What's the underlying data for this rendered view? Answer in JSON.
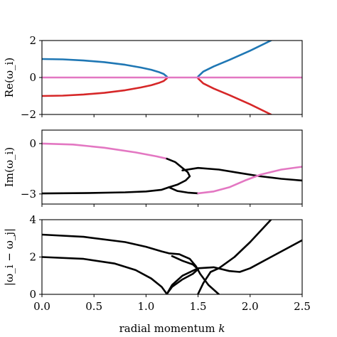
{
  "xlabel": "radial momentum k",
  "xlabel_plain": "radial momentum ",
  "xlabel_italic": "k",
  "colors": {
    "blue": "#1f77b4",
    "red": "#d62728",
    "pink": "#e377c2",
    "black": "#000000"
  },
  "chart_data": [
    {
      "type": "line",
      "ylabel": "Re(ω_i)",
      "xlim": [
        0.0,
        2.5
      ],
      "ylim": [
        -2,
        2
      ],
      "yticks": [
        "2",
        "0",
        "−2"
      ],
      "yticks_values": [
        2,
        0,
        -2
      ],
      "series": [
        {
          "color": "blue",
          "points": [
            [
              0.0,
              1.0
            ],
            [
              0.2,
              0.98
            ],
            [
              0.4,
              0.92
            ],
            [
              0.6,
              0.83
            ],
            [
              0.8,
              0.69
            ],
            [
              0.95,
              0.54
            ],
            [
              1.05,
              0.42
            ],
            [
              1.12,
              0.3
            ],
            [
              1.17,
              0.19
            ],
            [
              1.2,
              0.05
            ]
          ]
        },
        {
          "color": "blue",
          "points": [
            [
              1.5,
              0.05
            ],
            [
              1.55,
              0.32
            ],
            [
              1.65,
              0.6
            ],
            [
              1.8,
              0.95
            ],
            [
              2.0,
              1.45
            ],
            [
              2.2,
              2.0
            ]
          ]
        },
        {
          "color": "red",
          "points": [
            [
              0.0,
              -1.0
            ],
            [
              0.2,
              -0.98
            ],
            [
              0.4,
              -0.92
            ],
            [
              0.6,
              -0.83
            ],
            [
              0.8,
              -0.69
            ],
            [
              0.95,
              -0.54
            ],
            [
              1.05,
              -0.42
            ],
            [
              1.12,
              -0.3
            ],
            [
              1.17,
              -0.19
            ],
            [
              1.2,
              -0.05
            ]
          ]
        },
        {
          "color": "red",
          "points": [
            [
              1.5,
              -0.05
            ],
            [
              1.55,
              -0.32
            ],
            [
              1.65,
              -0.6
            ],
            [
              1.8,
              -0.95
            ],
            [
              2.0,
              -1.45
            ],
            [
              2.2,
              -2.0
            ]
          ]
        },
        {
          "color": "pink",
          "points": [
            [
              0.0,
              0.0
            ],
            [
              2.5,
              0.0
            ]
          ]
        }
      ]
    },
    {
      "type": "line",
      "ylabel": "Im(ω_i)",
      "xlim": [
        0.0,
        2.5
      ],
      "ylim": [
        -3.6,
        0.8
      ],
      "yticks": [
        "0",
        "−3"
      ],
      "yticks_values": [
        0,
        -3
      ],
      "series": [
        {
          "color": "pink",
          "points": [
            [
              0.0,
              0.0
            ],
            [
              0.3,
              -0.06
            ],
            [
              0.6,
              -0.25
            ],
            [
              0.9,
              -0.53
            ],
            [
              1.1,
              -0.76
            ],
            [
              1.2,
              -0.9
            ]
          ]
        },
        {
          "color": "black",
          "points": [
            [
              1.2,
              -0.9
            ],
            [
              1.28,
              -1.1
            ],
            [
              1.35,
              -1.45
            ],
            [
              1.4,
              -1.7
            ],
            [
              1.42,
              -1.95
            ],
            [
              1.38,
              -2.2
            ],
            [
              1.3,
              -2.45
            ],
            [
              1.22,
              -2.6
            ]
          ]
        },
        {
          "color": "black",
          "points": [
            [
              0.0,
              -2.97
            ],
            [
              0.4,
              -2.95
            ],
            [
              0.8,
              -2.9
            ],
            [
              1.0,
              -2.85
            ],
            [
              1.15,
              -2.75
            ],
            [
              1.22,
              -2.6
            ]
          ]
        },
        {
          "color": "black",
          "points": [
            [
              1.22,
              -2.6
            ],
            [
              1.3,
              -2.82
            ],
            [
              1.4,
              -2.92
            ],
            [
              1.5,
              -2.96
            ]
          ]
        },
        {
          "color": "black",
          "points": [
            [
              1.35,
              -1.6
            ],
            [
              1.5,
              -1.45
            ],
            [
              1.7,
              -1.55
            ],
            [
              1.9,
              -1.75
            ],
            [
              2.1,
              -1.95
            ],
            [
              2.3,
              -2.1
            ],
            [
              2.5,
              -2.2
            ]
          ]
        },
        {
          "color": "pink",
          "points": [
            [
              1.5,
              -2.96
            ],
            [
              1.65,
              -2.85
            ],
            [
              1.8,
              -2.6
            ],
            [
              1.95,
              -2.2
            ],
            [
              2.1,
              -1.85
            ],
            [
              2.3,
              -1.55
            ],
            [
              2.5,
              -1.38
            ]
          ]
        }
      ]
    },
    {
      "type": "line",
      "ylabel": "|ω_i − ω_j|",
      "xlim": [
        0.0,
        2.5
      ],
      "ylim": [
        0,
        4
      ],
      "yticks": [
        "4",
        "2",
        "0"
      ],
      "yticks_values": [
        4,
        2,
        0
      ],
      "xticks": [
        "0.0",
        "0.5",
        "1.0",
        "1.5",
        "2.0",
        "2.5"
      ],
      "xticks_values": [
        0.0,
        0.5,
        1.0,
        1.5,
        2.0,
        2.5
      ],
      "series": [
        {
          "color": "black",
          "points": [
            [
              0.0,
              3.2
            ],
            [
              0.4,
              3.08
            ],
            [
              0.8,
              2.8
            ],
            [
              1.0,
              2.55
            ],
            [
              1.15,
              2.3
            ],
            [
              1.22,
              2.2
            ],
            [
              1.32,
              2.15
            ],
            [
              1.42,
              1.9
            ],
            [
              1.48,
              1.5
            ],
            [
              1.52,
              1.1
            ],
            [
              1.6,
              0.5
            ],
            [
              1.7,
              0.0
            ]
          ]
        },
        {
          "color": "black",
          "points": [
            [
              0.0,
              2.0
            ],
            [
              0.4,
              1.9
            ],
            [
              0.7,
              1.65
            ],
            [
              0.9,
              1.3
            ],
            [
              1.05,
              0.85
            ],
            [
              1.15,
              0.4
            ],
            [
              1.2,
              0.02
            ]
          ]
        },
        {
          "color": "black",
          "points": [
            [
              1.2,
              0.02
            ],
            [
              1.25,
              0.4
            ],
            [
              1.35,
              0.8
            ],
            [
              1.45,
              1.1
            ],
            [
              1.5,
              1.35
            ],
            [
              1.45,
              1.6
            ],
            [
              1.35,
              1.8
            ],
            [
              1.25,
              2.05
            ]
          ]
        },
        {
          "color": "black",
          "points": [
            [
              1.2,
              0.02
            ],
            [
              1.25,
              0.5
            ],
            [
              1.35,
              1.0
            ],
            [
              1.5,
              1.4
            ],
            [
              1.65,
              1.45
            ],
            [
              1.8,
              1.25
            ],
            [
              1.9,
              1.2
            ],
            [
              2.0,
              1.4
            ],
            [
              2.2,
              2.0
            ],
            [
              2.5,
              2.9
            ]
          ]
        },
        {
          "color": "black",
          "points": [
            [
              1.5,
              0.02
            ],
            [
              1.55,
              0.6
            ],
            [
              1.62,
              1.2
            ],
            [
              1.7,
              1.4
            ],
            [
              1.85,
              2.0
            ],
            [
              2.0,
              2.8
            ],
            [
              2.2,
              4.0
            ]
          ]
        }
      ]
    }
  ]
}
